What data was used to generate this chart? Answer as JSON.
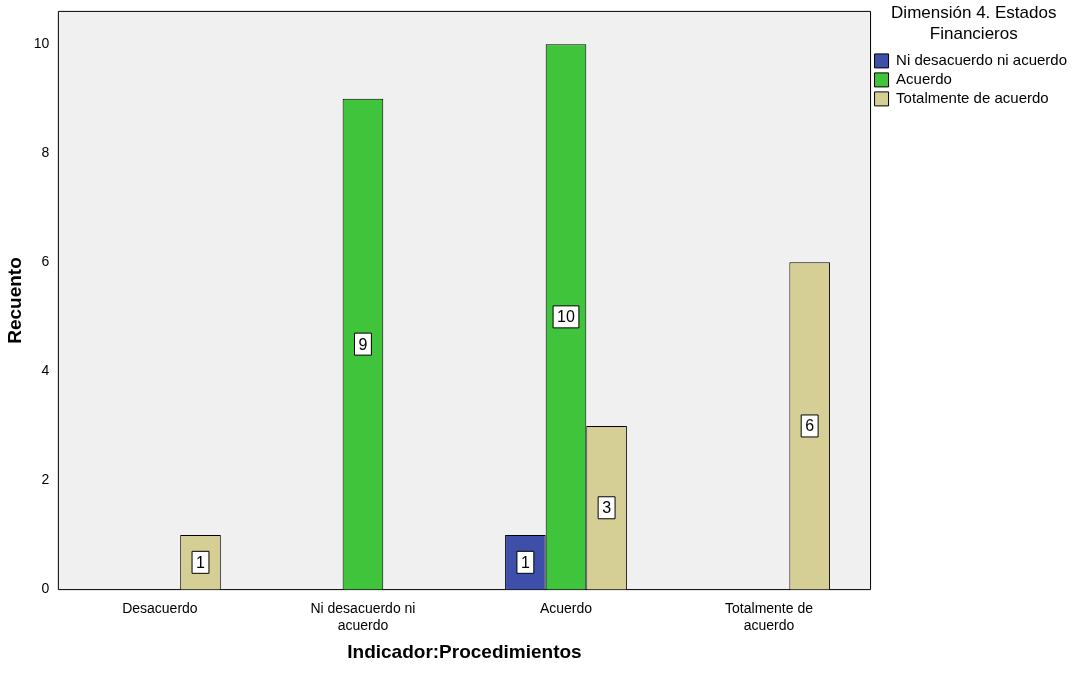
{
  "chart_data": {
    "type": "bar",
    "xlabel": "Indicador:Procedimientos",
    "ylabel": "Recuento",
    "legend_title": "Dimensión 4. Estados Financieros",
    "categories": [
      "Desacuerdo",
      "Ni desacuerdo ni acuerdo",
      "Acuerdo",
      "Totalmente de acuerdo"
    ],
    "series": [
      {
        "name": "Ni desacuerdo ni acuerdo",
        "color": "#3d4fa8",
        "values": [
          null,
          null,
          1,
          null
        ]
      },
      {
        "name": "Acuerdo",
        "color": "#3fc43c",
        "values": [
          null,
          9,
          10,
          null
        ]
      },
      {
        "name": "Totalmente de acuerdo",
        "color": "#d6cf95",
        "values": [
          1,
          null,
          3,
          6
        ]
      }
    ],
    "ylim": [
      0,
      10.6
    ],
    "yticks": [
      0,
      2,
      4,
      6,
      8,
      10
    ],
    "grid": false,
    "legend": "right",
    "data_labels": true
  }
}
